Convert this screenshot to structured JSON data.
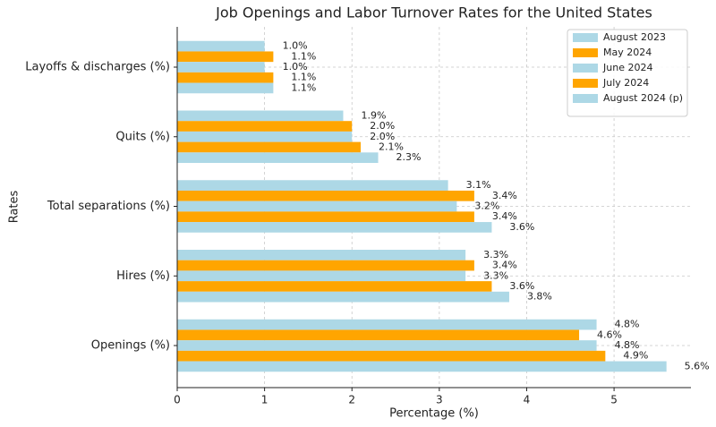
{
  "chart_data": {
    "type": "barh",
    "title": "Job Openings and Labor Turnover Rates for the United States",
    "x_label": "Percentage (%)",
    "y_label": "Rates",
    "categories": [
      "Openings (%)",
      "Hires (%)",
      "Total separations (%)",
      "Quits (%)",
      "Layoffs & discharges (%)"
    ],
    "series": [
      {
        "name": "August 2023",
        "color": "#add8e6",
        "values": [
          4.8,
          3.3,
          3.1,
          1.9,
          1.0
        ],
        "value_labels": [
          "4.8%",
          "3.3%",
          "3.1%",
          "1.9%",
          "1.0%"
        ]
      },
      {
        "name": "May 2024",
        "color": "#ffa500",
        "values": [
          4.6,
          3.4,
          3.4,
          2.0,
          1.1
        ],
        "value_labels": [
          "4.6%",
          "3.4%",
          "3.4%",
          "2.0%",
          "1.1%"
        ]
      },
      {
        "name": "June 2024",
        "color": "#add8e6",
        "values": [
          4.8,
          3.3,
          3.2,
          2.0,
          1.0
        ],
        "value_labels": [
          "4.8%",
          "3.3%",
          "3.2%",
          "2.0%",
          "1.0%"
        ]
      },
      {
        "name": "July 2024",
        "color": "#ffa500",
        "values": [
          4.9,
          3.6,
          3.4,
          2.1,
          1.1
        ],
        "value_labels": [
          "4.9%",
          "3.6%",
          "3.4%",
          "2.1%",
          "1.1%"
        ]
      },
      {
        "name": "August 2024 (p)",
        "color": "#add8e6",
        "values": [
          5.6,
          3.8,
          3.6,
          2.3,
          1.1
        ],
        "value_labels": [
          "5.6%",
          "3.8%",
          "3.6%",
          "2.3%",
          "1.1%"
        ]
      }
    ],
    "xlim": [
      0,
      5.88
    ],
    "xticks": [
      0,
      1,
      2,
      3,
      4,
      5
    ],
    "grid": true,
    "legend": "upper right"
  }
}
